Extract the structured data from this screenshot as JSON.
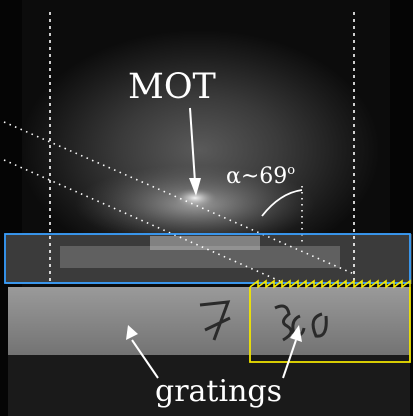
{
  "labels": {
    "mot": "MOT",
    "angle": "α~69",
    "angle_unit": "o",
    "gratings": "gratings"
  },
  "colors": {
    "blue_box": "#3aa0ff",
    "yellow_box": "#f2e600",
    "annotation": "#ffffff"
  }
}
